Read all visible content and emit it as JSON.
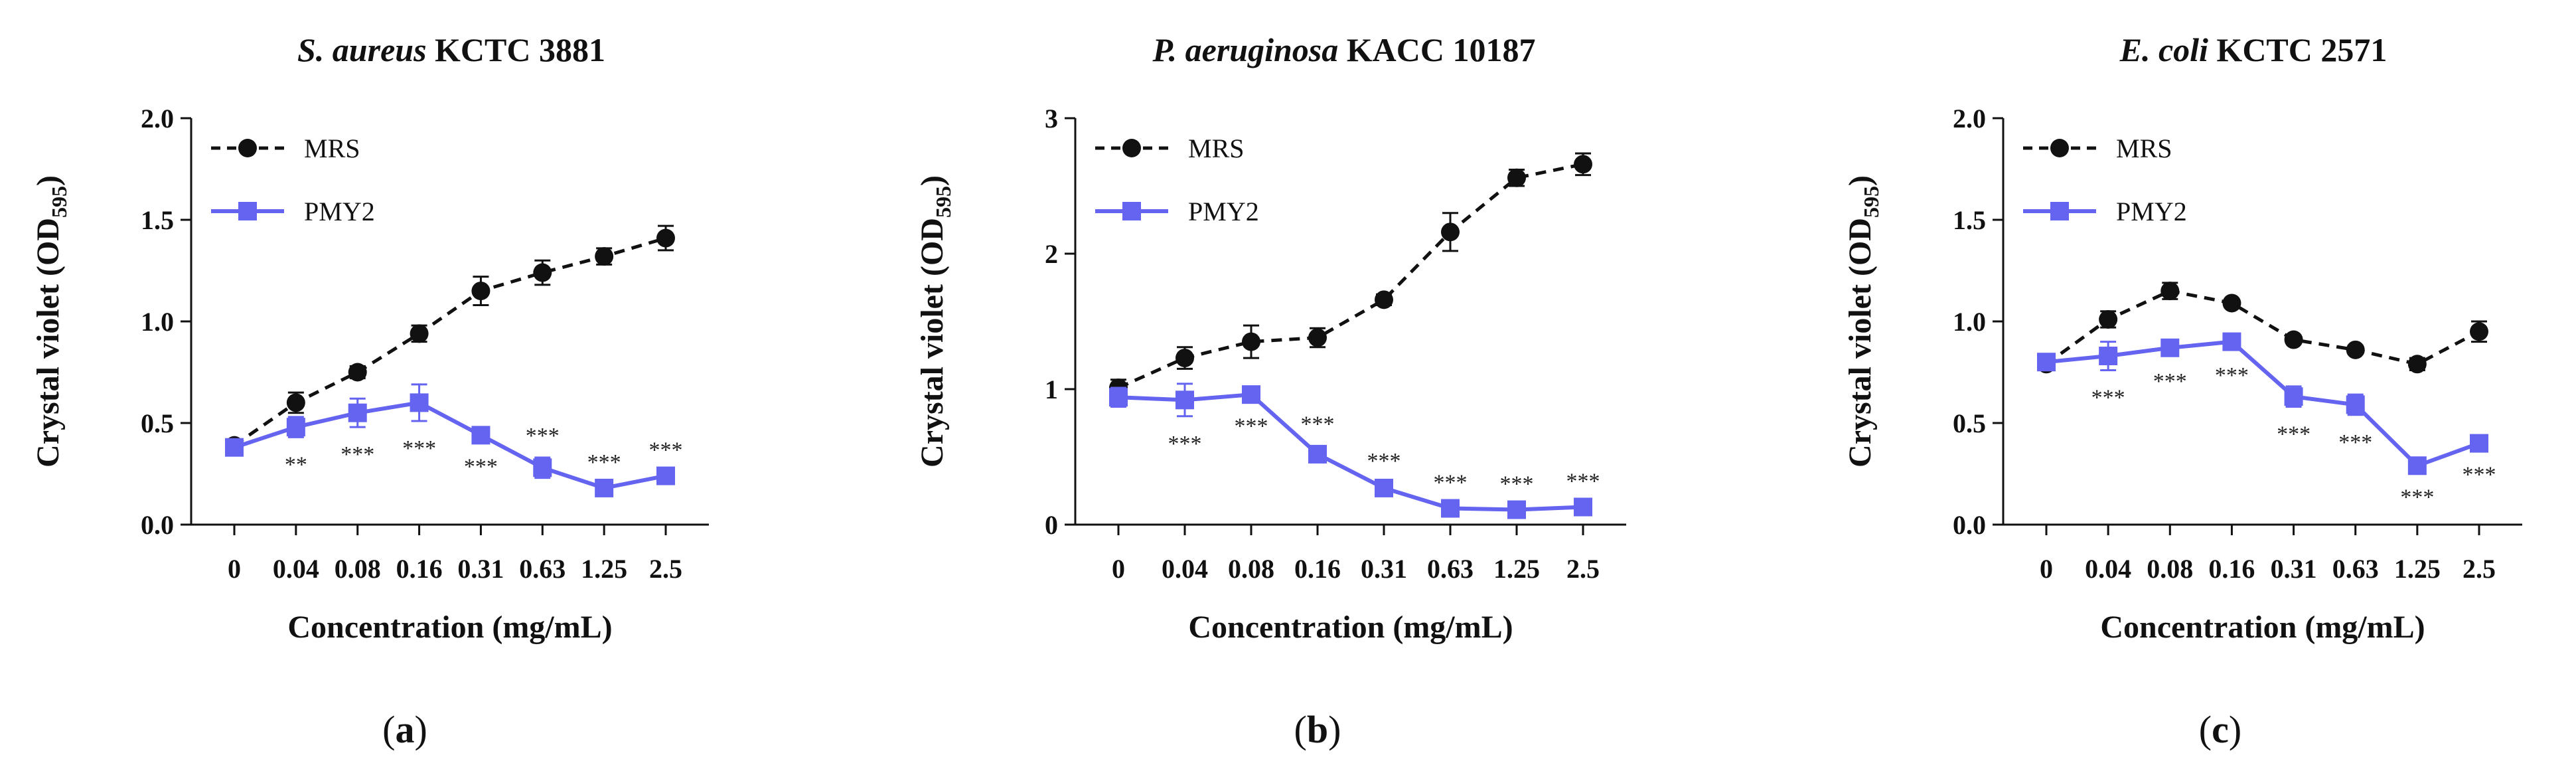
{
  "colors": {
    "mrs": "#111111",
    "pmy2": "#6464f0"
  },
  "legend": {
    "mrs": "MRS",
    "pmy2": "PMY2"
  },
  "chart_data": [
    {
      "type": "line",
      "panel": "(a)",
      "panel_letter": "a",
      "title_italic": "S. aureus",
      "title_rest": " KCTC 3881",
      "xlabel": "Concentration (mg/mL)",
      "ylabel": "Crystal violet (OD",
      "ylabel_sub": "595",
      "categories": [
        "0",
        "0.04",
        "0.08",
        "0.16",
        "0.31",
        "0.63",
        "1.25",
        "2.5"
      ],
      "ylim": [
        0,
        2.0
      ],
      "yticks": [
        "0.0",
        "0.5",
        "1.0",
        "1.5",
        "2.0"
      ],
      "ytick_values": [
        0,
        0.5,
        1.0,
        1.5,
        2.0
      ],
      "series": [
        {
          "name": "MRS",
          "style": "dashed",
          "marker": "circle",
          "values": [
            0.39,
            0.6,
            0.75,
            0.94,
            1.15,
            1.24,
            1.32,
            1.41
          ],
          "errors": [
            0.02,
            0.05,
            0.03,
            0.04,
            0.07,
            0.06,
            0.04,
            0.06
          ]
        },
        {
          "name": "PMY2",
          "style": "solid",
          "marker": "square",
          "values": [
            0.38,
            0.48,
            0.55,
            0.6,
            0.44,
            0.28,
            0.18,
            0.24
          ],
          "errors": [
            0.02,
            0.05,
            0.07,
            0.09,
            0.02,
            0.05,
            0.02,
            0.02
          ]
        }
      ],
      "significance": [
        "",
        "**",
        "***",
        "***",
        "***",
        "***",
        "***",
        "***"
      ],
      "sig_position": [
        "",
        "below",
        "below",
        "below",
        "below",
        "above",
        "above",
        "above"
      ]
    },
    {
      "type": "line",
      "panel": "(b)",
      "panel_letter": "b",
      "title_italic": "P. aeruginosa",
      "title_rest": " KACC 10187",
      "xlabel": "Concentration (mg/mL)",
      "ylabel": "Crystal violet (OD",
      "ylabel_sub": "595",
      "categories": [
        "0",
        "0.04",
        "0.08",
        "0.16",
        "0.31",
        "0.63",
        "1.25",
        "2.5"
      ],
      "ylim": [
        0,
        3
      ],
      "yticks": [
        "0",
        "1",
        "2",
        "3"
      ],
      "ytick_values": [
        0,
        1,
        2,
        3
      ],
      "series": [
        {
          "name": "MRS",
          "style": "dashed",
          "marker": "circle",
          "values": [
            1.01,
            1.23,
            1.35,
            1.38,
            1.66,
            2.16,
            2.56,
            2.66
          ],
          "errors": [
            0.06,
            0.08,
            0.12,
            0.07,
            0.04,
            0.14,
            0.06,
            0.08
          ]
        },
        {
          "name": "PMY2",
          "style": "solid",
          "marker": "square",
          "values": [
            0.94,
            0.92,
            0.96,
            0.52,
            0.27,
            0.12,
            0.11,
            0.13
          ],
          "errors": [
            0.07,
            0.12,
            0.03,
            0.06,
            0.04,
            0.03,
            0.03,
            0.03
          ]
        }
      ],
      "significance": [
        "",
        "***",
        "***",
        "***",
        "***",
        "***",
        "***",
        "***"
      ],
      "sig_position": [
        "",
        "below",
        "below",
        "above",
        "above",
        "above",
        "above",
        "above"
      ]
    },
    {
      "type": "line",
      "panel": "(c)",
      "panel_letter": "c",
      "title_italic": "E. coli",
      "title_rest": " KCTC 2571",
      "xlabel": "Concentration (mg/mL)",
      "ylabel": "Crystal violet (OD",
      "ylabel_sub": "595",
      "categories": [
        "0",
        "0.04",
        "0.08",
        "0.16",
        "0.31",
        "0.63",
        "1.25",
        "2.5"
      ],
      "ylim": [
        0,
        2.0
      ],
      "yticks": [
        "0.0",
        "0.5",
        "1.0",
        "1.5",
        "2.0"
      ],
      "ytick_values": [
        0,
        0.5,
        1.0,
        1.5,
        2.0
      ],
      "series": [
        {
          "name": "MRS",
          "style": "dashed",
          "marker": "circle",
          "values": [
            0.79,
            1.01,
            1.15,
            1.09,
            0.91,
            0.86,
            0.79,
            0.95
          ],
          "errors": [
            0.03,
            0.04,
            0.04,
            0.02,
            0.02,
            0.02,
            0.03,
            0.05
          ]
        },
        {
          "name": "PMY2",
          "style": "solid",
          "marker": "square",
          "values": [
            0.8,
            0.83,
            0.87,
            0.9,
            0.63,
            0.59,
            0.29,
            0.4
          ],
          "errors": [
            0.02,
            0.07,
            0.03,
            0.03,
            0.05,
            0.05,
            0.02,
            0.02
          ]
        }
      ],
      "significance": [
        "",
        "***",
        "***",
        "***",
        "***",
        "***",
        "***",
        "***"
      ],
      "sig_position": [
        "",
        "below",
        "below",
        "below",
        "below",
        "below",
        "below",
        "below"
      ]
    }
  ]
}
